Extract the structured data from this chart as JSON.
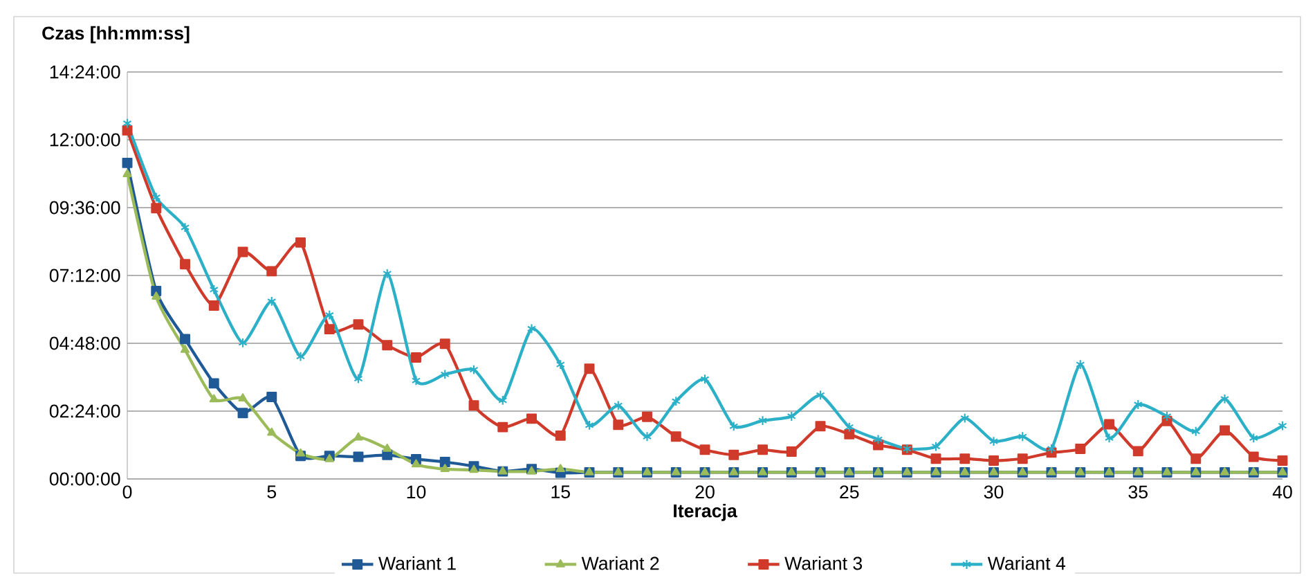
{
  "chart_data": {
    "type": "line",
    "ylabel": "Czas [hh:mm:ss]",
    "xlabel": "Iteracja",
    "x": [
      0,
      1,
      2,
      3,
      4,
      5,
      6,
      7,
      8,
      9,
      10,
      11,
      12,
      13,
      14,
      15,
      16,
      17,
      18,
      19,
      20,
      21,
      22,
      23,
      24,
      25,
      26,
      27,
      28,
      29,
      30,
      31,
      32,
      33,
      34,
      35,
      36,
      37,
      38,
      39,
      40
    ],
    "xlim": [
      0,
      40
    ],
    "xticks": [
      0,
      5,
      10,
      15,
      20,
      25,
      30,
      35,
      40
    ],
    "ylim": [
      0,
      864
    ],
    "yticks": [
      {
        "value": 0,
        "label": "00:00:00"
      },
      {
        "value": 144,
        "label": "02:24:00"
      },
      {
        "value": 288,
        "label": "04:48:00"
      },
      {
        "value": 432,
        "label": "07:12:00"
      },
      {
        "value": 576,
        "label": "09:36:00"
      },
      {
        "value": 720,
        "label": "12:00:00"
      },
      {
        "value": 864,
        "label": "14:24:00"
      }
    ],
    "grid": "y",
    "legend": "bottom",
    "series": [
      {
        "name": "Wariant 1",
        "color": "#1f5a96",
        "marker": "square",
        "values": [
          671,
          399,
          297,
          203,
          140,
          174,
          49,
          49,
          47,
          51,
          42,
          36,
          27,
          16,
          21,
          13,
          14,
          14,
          14,
          14,
          14,
          14,
          14,
          14,
          14,
          14,
          14,
          14,
          14,
          14,
          14,
          14,
          14,
          14,
          14,
          14,
          14,
          14,
          14,
          14,
          14
        ]
      },
      {
        "name": "Wariant 2",
        "color": "#9bbb59",
        "marker": "triangle",
        "values": [
          647,
          387,
          274,
          169,
          171,
          98,
          54,
          42,
          88,
          64,
          31,
          21,
          19,
          16,
          16,
          21,
          14,
          14,
          14,
          14,
          14,
          14,
          14,
          14,
          14,
          14,
          14,
          14,
          14,
          14,
          14,
          14,
          14,
          14,
          14,
          14,
          14,
          14,
          14,
          14,
          14
        ]
      },
      {
        "name": "Wariant 3",
        "color": "#d03a2a",
        "marker": "square",
        "values": [
          740,
          575,
          456,
          368,
          482,
          441,
          502,
          318,
          328,
          284,
          258,
          287,
          156,
          110,
          128,
          92,
          234,
          115,
          132,
          90,
          62,
          51,
          62,
          58,
          112,
          95,
          72,
          62,
          43,
          43,
          39,
          43,
          56,
          64,
          116,
          59,
          123,
          43,
          103,
          47,
          39
        ]
      },
      {
        "name": "Wariant 4",
        "color": "#2cb0c8",
        "marker": "cross",
        "values": [
          755,
          598,
          534,
          402,
          289,
          377,
          260,
          348,
          213,
          436,
          209,
          222,
          232,
          167,
          319,
          243,
          114,
          156,
          90,
          165,
          212,
          112,
          124,
          133,
          178,
          110,
          84,
          64,
          69,
          129,
          80,
          90,
          64,
          243,
          87,
          158,
          133,
          101,
          170,
          87,
          113
        ]
      }
    ]
  }
}
